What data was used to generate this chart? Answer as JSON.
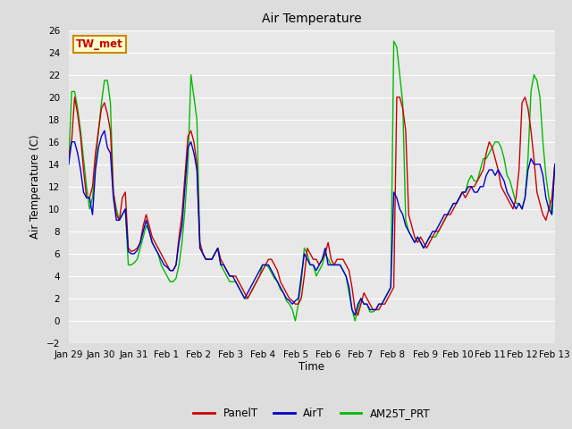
{
  "title": "Air Temperature",
  "ylabel": "Air Temperature (C)",
  "xlabel": "Time",
  "annotation": "TW_met",
  "ylim": [
    -2,
    26
  ],
  "yticks": [
    -2,
    0,
    2,
    4,
    6,
    8,
    10,
    12,
    14,
    16,
    18,
    20,
    22,
    24,
    26
  ],
  "xtick_labels": [
    "Jan 29",
    "Jan 30",
    "Jan 31",
    "Feb 1",
    "Feb 2",
    "Feb 3",
    "Feb 4",
    "Feb 5",
    "Feb 6",
    "Feb 7",
    "Feb 8",
    "Feb 9",
    "Feb 10",
    "Feb 11",
    "Feb 12",
    "Feb 13"
  ],
  "legend": [
    "PanelT",
    "AirT",
    "AM25T_PRT"
  ],
  "line_colors": [
    "#cc0000",
    "#0000cc",
    "#00bb00"
  ],
  "background_color": "#dddddd",
  "plot_bg_color": "#e8e8e8",
  "grid_color": "#ffffff",
  "annotation_fg": "#cc0000",
  "annotation_bg": "#ffffcc",
  "annotation_border": "#cc8800",
  "PanelT": [
    14.8,
    16.0,
    20.0,
    18.5,
    16.5,
    13.5,
    11.0,
    11.0,
    12.0,
    15.0,
    17.0,
    19.0,
    19.5,
    18.5,
    17.0,
    11.5,
    9.5,
    9.0,
    11.0,
    11.5,
    6.5,
    6.2,
    6.3,
    6.5,
    7.0,
    8.5,
    9.5,
    8.5,
    7.5,
    7.0,
    6.5,
    6.0,
    5.5,
    5.0,
    4.5,
    4.5,
    5.0,
    7.5,
    9.5,
    13.0,
    16.5,
    17.0,
    16.0,
    14.0,
    7.0,
    6.0,
    5.5,
    5.5,
    5.5,
    6.0,
    6.5,
    5.5,
    5.0,
    4.5,
    4.0,
    4.0,
    4.0,
    3.5,
    3.0,
    2.5,
    2.0,
    2.5,
    3.0,
    3.5,
    4.0,
    4.5,
    5.0,
    5.5,
    5.5,
    5.0,
    4.5,
    3.5,
    3.0,
    2.5,
    2.0,
    1.8,
    1.5,
    1.5,
    2.0,
    4.0,
    6.5,
    6.0,
    5.5,
    5.5,
    5.0,
    5.5,
    6.0,
    7.0,
    5.5,
    5.0,
    5.5,
    5.5,
    5.5,
    5.0,
    4.5,
    3.0,
    1.0,
    0.5,
    1.5,
    2.5,
    2.0,
    1.5,
    1.0,
    1.0,
    1.0,
    1.5,
    1.5,
    2.0,
    2.5,
    3.0,
    20.0,
    20.0,
    19.0,
    17.0,
    9.5,
    8.5,
    7.5,
    7.0,
    7.5,
    7.0,
    6.5,
    7.0,
    7.5,
    8.0,
    8.0,
    8.5,
    9.0,
    9.5,
    9.5,
    10.0,
    10.5,
    11.0,
    11.5,
    11.0,
    11.5,
    12.0,
    12.0,
    12.5,
    13.0,
    13.5,
    15.0,
    16.0,
    15.5,
    14.5,
    13.5,
    12.0,
    11.5,
    11.0,
    10.5,
    10.0,
    11.0,
    13.5,
    19.5,
    20.0,
    19.0,
    17.0,
    14.5,
    11.5,
    10.5,
    9.5,
    9.0,
    10.0,
    11.0,
    14.0
  ],
  "AirT": [
    14.0,
    16.0,
    16.0,
    15.0,
    13.5,
    11.5,
    11.0,
    11.0,
    9.5,
    13.5,
    15.5,
    16.5,
    17.0,
    15.5,
    15.0,
    11.0,
    9.0,
    9.0,
    9.5,
    10.0,
    6.2,
    6.0,
    6.0,
    6.3,
    7.0,
    8.0,
    9.0,
    8.0,
    7.0,
    6.5,
    6.0,
    5.5,
    5.0,
    4.8,
    4.5,
    4.5,
    5.0,
    7.0,
    8.5,
    12.0,
    15.5,
    16.0,
    15.0,
    13.5,
    6.5,
    6.0,
    5.5,
    5.5,
    5.5,
    6.0,
    6.5,
    5.0,
    5.0,
    4.5,
    4.0,
    4.0,
    3.5,
    3.0,
    2.5,
    2.0,
    2.5,
    3.0,
    3.5,
    4.0,
    4.5,
    5.0,
    5.0,
    5.0,
    4.5,
    4.0,
    3.5,
    3.0,
    2.5,
    2.0,
    1.8,
    1.5,
    1.8,
    2.0,
    4.0,
    6.0,
    5.5,
    5.0,
    5.0,
    4.5,
    5.0,
    5.5,
    6.5,
    5.0,
    5.0,
    5.0,
    5.0,
    5.0,
    4.5,
    4.0,
    3.0,
    1.0,
    0.5,
    1.5,
    2.0,
    1.5,
    1.5,
    1.0,
    1.0,
    1.0,
    1.5,
    1.5,
    2.0,
    2.5,
    3.0,
    11.5,
    11.0,
    10.0,
    9.5,
    8.5,
    8.0,
    7.5,
    7.0,
    7.5,
    7.0,
    6.5,
    7.0,
    7.5,
    8.0,
    8.0,
    8.5,
    9.0,
    9.5,
    9.5,
    10.0,
    10.5,
    10.5,
    11.0,
    11.5,
    11.5,
    12.0,
    12.0,
    11.5,
    11.5,
    12.0,
    12.0,
    13.0,
    13.5,
    13.5,
    13.0,
    13.5,
    13.0,
    12.5,
    11.5,
    11.0,
    10.5,
    10.0,
    10.5,
    10.0,
    11.0,
    13.5,
    14.5,
    14.0,
    14.0,
    14.0,
    13.0,
    11.0,
    10.0,
    9.5,
    14.0
  ],
  "AM25T_PRT": [
    14.0,
    20.5,
    20.5,
    19.0,
    17.0,
    14.5,
    12.0,
    10.0,
    11.0,
    14.0,
    17.0,
    19.5,
    21.5,
    21.5,
    19.5,
    11.5,
    10.0,
    9.0,
    9.5,
    10.0,
    5.0,
    5.0,
    5.2,
    5.5,
    6.5,
    7.5,
    8.5,
    8.0,
    7.0,
    6.5,
    6.0,
    5.0,
    4.5,
    4.0,
    3.5,
    3.5,
    3.8,
    5.0,
    7.0,
    10.0,
    14.0,
    22.0,
    20.0,
    18.0,
    7.0,
    6.0,
    5.5,
    5.5,
    5.5,
    6.0,
    6.5,
    5.0,
    4.5,
    4.0,
    3.5,
    3.5,
    3.5,
    3.0,
    2.5,
    2.0,
    2.0,
    2.5,
    3.0,
    3.5,
    4.0,
    5.0,
    5.0,
    4.8,
    4.3,
    3.8,
    3.5,
    2.8,
    2.5,
    1.8,
    1.5,
    1.0,
    0.0,
    1.5,
    3.5,
    6.5,
    6.0,
    5.0,
    5.0,
    4.0,
    4.5,
    5.0,
    6.0,
    5.5,
    5.0,
    5.0,
    5.0,
    5.0,
    4.5,
    4.0,
    2.5,
    1.0,
    0.0,
    1.0,
    2.0,
    1.5,
    1.5,
    0.8,
    0.8,
    1.0,
    1.5,
    1.5,
    2.0,
    2.5,
    3.0,
    25.0,
    24.5,
    22.0,
    19.5,
    9.0,
    8.0,
    7.5,
    7.0,
    7.5,
    7.0,
    6.5,
    7.0,
    7.5,
    7.5,
    7.5,
    8.0,
    8.5,
    9.0,
    9.5,
    10.0,
    10.5,
    10.5,
    11.0,
    11.5,
    11.5,
    12.5,
    13.0,
    12.5,
    12.5,
    13.5,
    14.5,
    14.5,
    15.0,
    15.5,
    16.0,
    16.0,
    15.5,
    14.5,
    13.0,
    12.5,
    11.5,
    10.5,
    10.5,
    10.0,
    11.0,
    14.5,
    20.5,
    22.0,
    21.5,
    20.0,
    16.0,
    13.0,
    11.0,
    9.5,
    14.0
  ]
}
